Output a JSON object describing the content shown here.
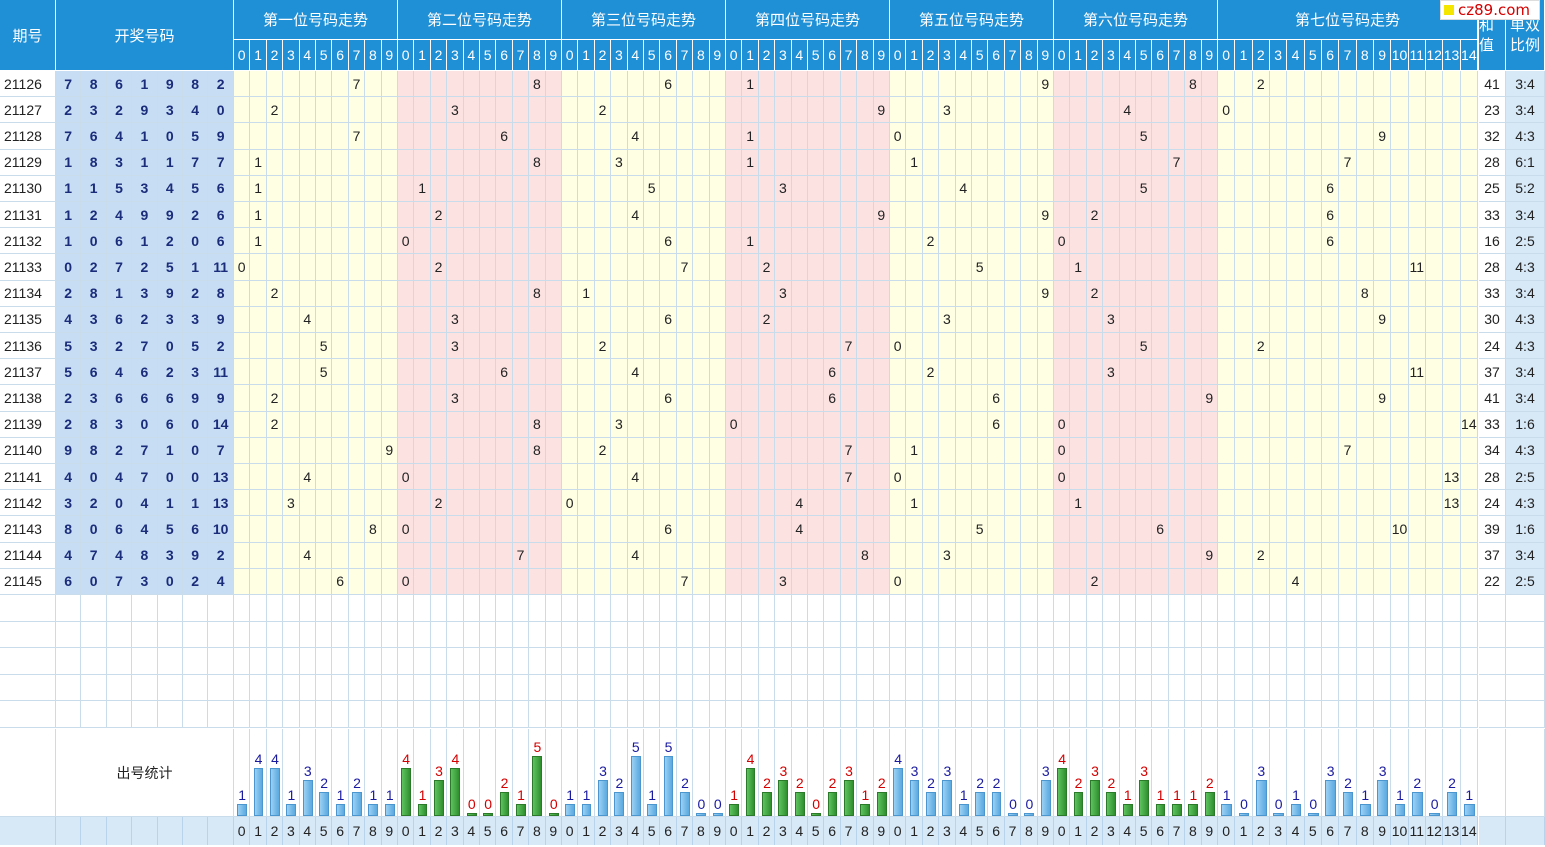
{
  "headers": {
    "issue": "期号",
    "draw": "开奖号码",
    "positions": [
      "第一位号码走势",
      "第二位号码走势",
      "第三位号码走势",
      "第四位号码走势",
      "第五位号码走势",
      "第六位号码走势",
      "第七位号码走势"
    ],
    "sum": "和值",
    "ratio": "单双比例",
    "stats_label": "出号统计"
  },
  "watermark": "cz89.com",
  "rows": [
    {
      "issue": "21126",
      "draw": [
        7,
        8,
        6,
        1,
        9,
        8,
        2
      ],
      "sum": 41,
      "ratio": "3:4"
    },
    {
      "issue": "21127",
      "draw": [
        2,
        3,
        2,
        9,
        3,
        4,
        0
      ],
      "sum": 23,
      "ratio": "3:4"
    },
    {
      "issue": "21128",
      "draw": [
        7,
        6,
        4,
        1,
        0,
        5,
        9
      ],
      "sum": 32,
      "ratio": "4:3"
    },
    {
      "issue": "21129",
      "draw": [
        1,
        8,
        3,
        1,
        1,
        7,
        7
      ],
      "sum": 28,
      "ratio": "6:1"
    },
    {
      "issue": "21130",
      "draw": [
        1,
        1,
        5,
        3,
        4,
        5,
        6
      ],
      "sum": 25,
      "ratio": "5:2"
    },
    {
      "issue": "21131",
      "draw": [
        1,
        2,
        4,
        9,
        9,
        2,
        6
      ],
      "sum": 33,
      "ratio": "3:4"
    },
    {
      "issue": "21132",
      "draw": [
        1,
        0,
        6,
        1,
        2,
        0,
        6
      ],
      "sum": 16,
      "ratio": "2:5"
    },
    {
      "issue": "21133",
      "draw": [
        0,
        2,
        7,
        2,
        5,
        1,
        11
      ],
      "sum": 28,
      "ratio": "4:3"
    },
    {
      "issue": "21134",
      "draw": [
        2,
        8,
        1,
        3,
        9,
        2,
        8
      ],
      "sum": 33,
      "ratio": "3:4"
    },
    {
      "issue": "21135",
      "draw": [
        4,
        3,
        6,
        2,
        3,
        3,
        9
      ],
      "sum": 30,
      "ratio": "4:3"
    },
    {
      "issue": "21136",
      "draw": [
        5,
        3,
        2,
        7,
        0,
        5,
        2
      ],
      "sum": 24,
      "ratio": "4:3"
    },
    {
      "issue": "21137",
      "draw": [
        5,
        6,
        4,
        6,
        2,
        3,
        11
      ],
      "sum": 37,
      "ratio": "3:4"
    },
    {
      "issue": "21138",
      "draw": [
        2,
        3,
        6,
        6,
        6,
        9,
        9
      ],
      "sum": 41,
      "ratio": "3:4"
    },
    {
      "issue": "21139",
      "draw": [
        2,
        8,
        3,
        0,
        6,
        0,
        14
      ],
      "sum": 33,
      "ratio": "1:6"
    },
    {
      "issue": "21140",
      "draw": [
        9,
        8,
        2,
        7,
        1,
        0,
        7
      ],
      "sum": 34,
      "ratio": "4:3"
    },
    {
      "issue": "21141",
      "draw": [
        4,
        0,
        4,
        7,
        0,
        0,
        13
      ],
      "sum": 28,
      "ratio": "2:5"
    },
    {
      "issue": "21142",
      "draw": [
        3,
        2,
        0,
        4,
        1,
        1,
        13
      ],
      "sum": 24,
      "ratio": "4:3"
    },
    {
      "issue": "21143",
      "draw": [
        8,
        0,
        6,
        4,
        5,
        6,
        10
      ],
      "sum": 39,
      "ratio": "1:6"
    },
    {
      "issue": "21144",
      "draw": [
        4,
        7,
        4,
        8,
        3,
        9,
        2
      ],
      "sum": 37,
      "ratio": "3:4"
    },
    {
      "issue": "21145",
      "draw": [
        6,
        0,
        7,
        3,
        0,
        2,
        4
      ],
      "sum": 22,
      "ratio": "2:5"
    }
  ],
  "stats": [
    [
      1,
      4,
      4,
      1,
      3,
      2,
      1,
      2,
      1,
      1
    ],
    [
      4,
      1,
      3,
      4,
      0,
      0,
      2,
      1,
      5,
      0
    ],
    [
      1,
      1,
      3,
      2,
      5,
      1,
      5,
      2,
      0,
      0
    ],
    [
      1,
      4,
      2,
      3,
      2,
      0,
      2,
      3,
      1,
      2
    ],
    [
      4,
      3,
      2,
      3,
      1,
      2,
      2,
      0,
      0,
      3
    ],
    [
      4,
      2,
      3,
      2,
      1,
      3,
      1,
      1,
      1,
      2
    ],
    [
      1,
      0,
      3,
      0,
      1,
      0,
      3,
      2,
      1,
      3,
      1,
      2,
      0,
      2,
      1
    ]
  ],
  "colors": {
    "header": "#1f8fd6",
    "draw_bg": "#c7ddf4",
    "yellow": "#ffffe4",
    "pink": "#fde2e2",
    "stat_blue": "#1a1aa0",
    "stat_red": "#d40000"
  }
}
